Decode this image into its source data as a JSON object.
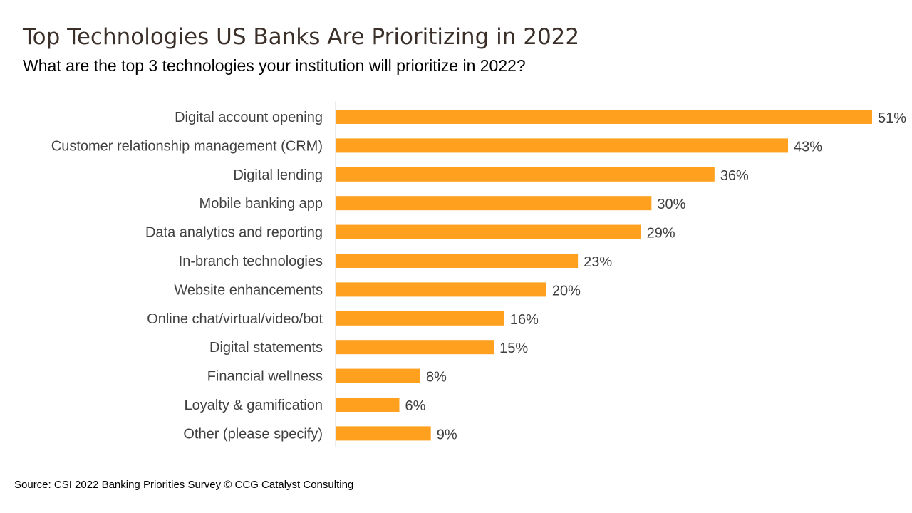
{
  "title": "Top Technologies US Banks Are Prioritizing in 2022",
  "subtitle": "What are the top 3 technologies your institution will prioritize in 2022?",
  "source": "Source: CSI 2022 Banking Priorities Survey © CCG Catalyst Consulting",
  "chart_data": {
    "type": "bar",
    "orientation": "horizontal",
    "categories": [
      "Digital account opening",
      "Customer relationship management (CRM)",
      "Digital lending",
      "Mobile banking app",
      "Data analytics and reporting",
      "In-branch technologies",
      "Website enhancements",
      "Online chat/virtual/video/bot",
      "Digital statements",
      "Financial wellness",
      "Loyalty & gamification",
      "Other (please specify)"
    ],
    "values": [
      51,
      43,
      36,
      30,
      29,
      23,
      20,
      16,
      15,
      8,
      6,
      9
    ],
    "value_labels": [
      "51%",
      "43%",
      "36%",
      "30%",
      "29%",
      "23%",
      "20%",
      "16%",
      "15%",
      "8%",
      "6%",
      "9%"
    ],
    "xlim": [
      0,
      51
    ],
    "grid": false,
    "bar_color": "#FFA01E",
    "label_color": "#404040"
  }
}
